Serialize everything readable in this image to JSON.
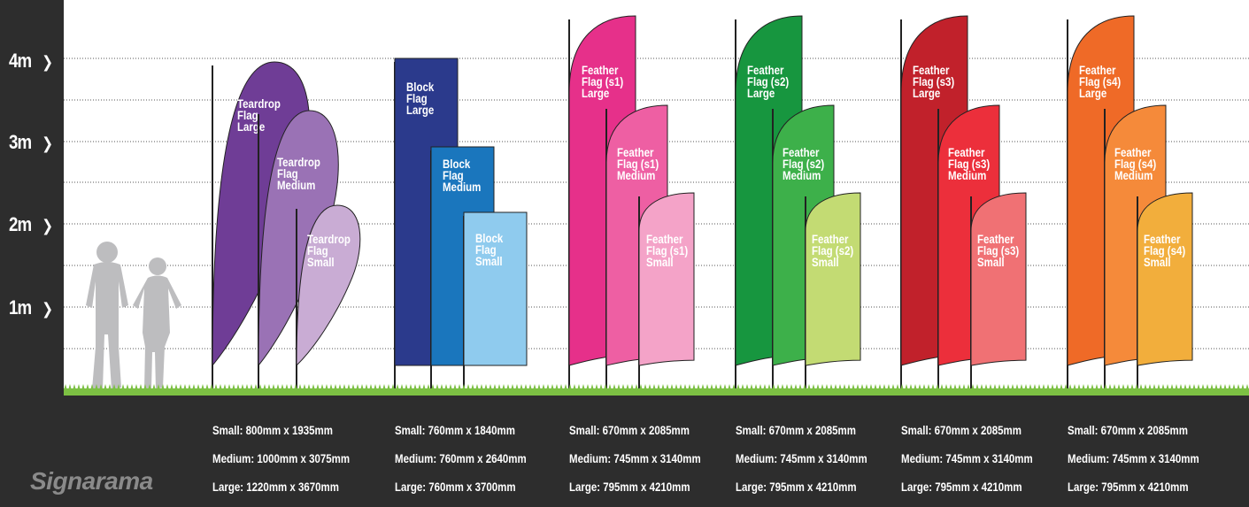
{
  "axis": {
    "ticks": [
      "4m",
      "3m",
      "2m",
      "1m"
    ],
    "arrow": "❯"
  },
  "logo": "Signarama",
  "groups": [
    {
      "id": "teardrop",
      "colors": [
        "#6f3d96",
        "#9a72b5",
        "#c9acd4"
      ],
      "flags": [
        {
          "lines": [
            "Teardrop",
            "Flag",
            "Large"
          ]
        },
        {
          "lines": [
            "Teardrop",
            "Flag",
            "Medium"
          ]
        },
        {
          "lines": [
            "Teardrop",
            "Flag",
            "Small"
          ]
        }
      ],
      "specs": [
        "Small: 800mm x 1935mm",
        "Medium: 1000mm x 3075mm",
        "Large: 1220mm x 3670mm"
      ]
    },
    {
      "id": "block",
      "colors": [
        "#2b3a8c",
        "#1a76bd",
        "#8fcbee"
      ],
      "flags": [
        {
          "lines": [
            "Block",
            "Flag",
            "Large"
          ]
        },
        {
          "lines": [
            "Block",
            "Flag",
            "Medium"
          ]
        },
        {
          "lines": [
            "Block",
            "Flag",
            "Small"
          ]
        }
      ],
      "specs": [
        "Small: 760mm x 1840mm",
        "Medium: 760mm x 2640mm",
        "Large:  760mm x 3700mm"
      ]
    },
    {
      "id": "feather-s1",
      "colors": [
        "#e6308a",
        "#ee5fa3",
        "#f4a3c8"
      ],
      "flags": [
        {
          "lines": [
            "Feather",
            "Flag (s1)",
            "Large"
          ]
        },
        {
          "lines": [
            "Feather",
            "Flag (s1)",
            "Medium"
          ]
        },
        {
          "lines": [
            "Feather",
            "Flag (s1)",
            "Small"
          ]
        }
      ],
      "specs": [
        "Small: 670mm x 2085mm",
        "Medium: 745mm x 3140mm",
        "Large:  795mm x 4210mm"
      ]
    },
    {
      "id": "feather-s2",
      "colors": [
        "#17963f",
        "#3db04a",
        "#c3db73"
      ],
      "flags": [
        {
          "lines": [
            "Feather",
            "Flag (s2)",
            "Large"
          ]
        },
        {
          "lines": [
            "Feather",
            "Flag (s2)",
            "Medium"
          ]
        },
        {
          "lines": [
            "Feather",
            "Flag (s2)",
            "Small"
          ]
        }
      ],
      "specs": [
        "Small: 670mm x 2085mm",
        "Medium: 745mm x 3140mm",
        "Large:  795mm x 4210mm"
      ]
    },
    {
      "id": "feather-s3",
      "colors": [
        "#c1212b",
        "#ec2f3b",
        "#f07174"
      ],
      "flags": [
        {
          "lines": [
            "Feather",
            "Flag (s3)",
            "Large"
          ]
        },
        {
          "lines": [
            "Feather",
            "Flag (s3)",
            "Medium"
          ]
        },
        {
          "lines": [
            "Feather",
            "Flag (s3)",
            "Small"
          ]
        }
      ],
      "specs": [
        "Small: 670mm x 2085mm",
        "Medium: 745mm x 3140mm",
        "Large:  795mm x 4210mm"
      ]
    },
    {
      "id": "feather-s4",
      "colors": [
        "#ef6a27",
        "#f58a3a",
        "#f2ae3c"
      ],
      "flags": [
        {
          "lines": [
            "Feather",
            "Flag (s4)",
            "Large"
          ]
        },
        {
          "lines": [
            "Feather",
            "Flag (s4)",
            "Medium"
          ]
        },
        {
          "lines": [
            "Feather",
            "Flag (s4)",
            "Small"
          ]
        }
      ],
      "specs": [
        "Small: 670mm x 2085mm",
        "Medium: 745mm x 3140mm",
        "Large:  795mm x 4210mm"
      ]
    }
  ],
  "colors": {
    "dark": "#2d2d2d",
    "grass": "#7cc043",
    "silhouette": "#bdbdbf"
  }
}
